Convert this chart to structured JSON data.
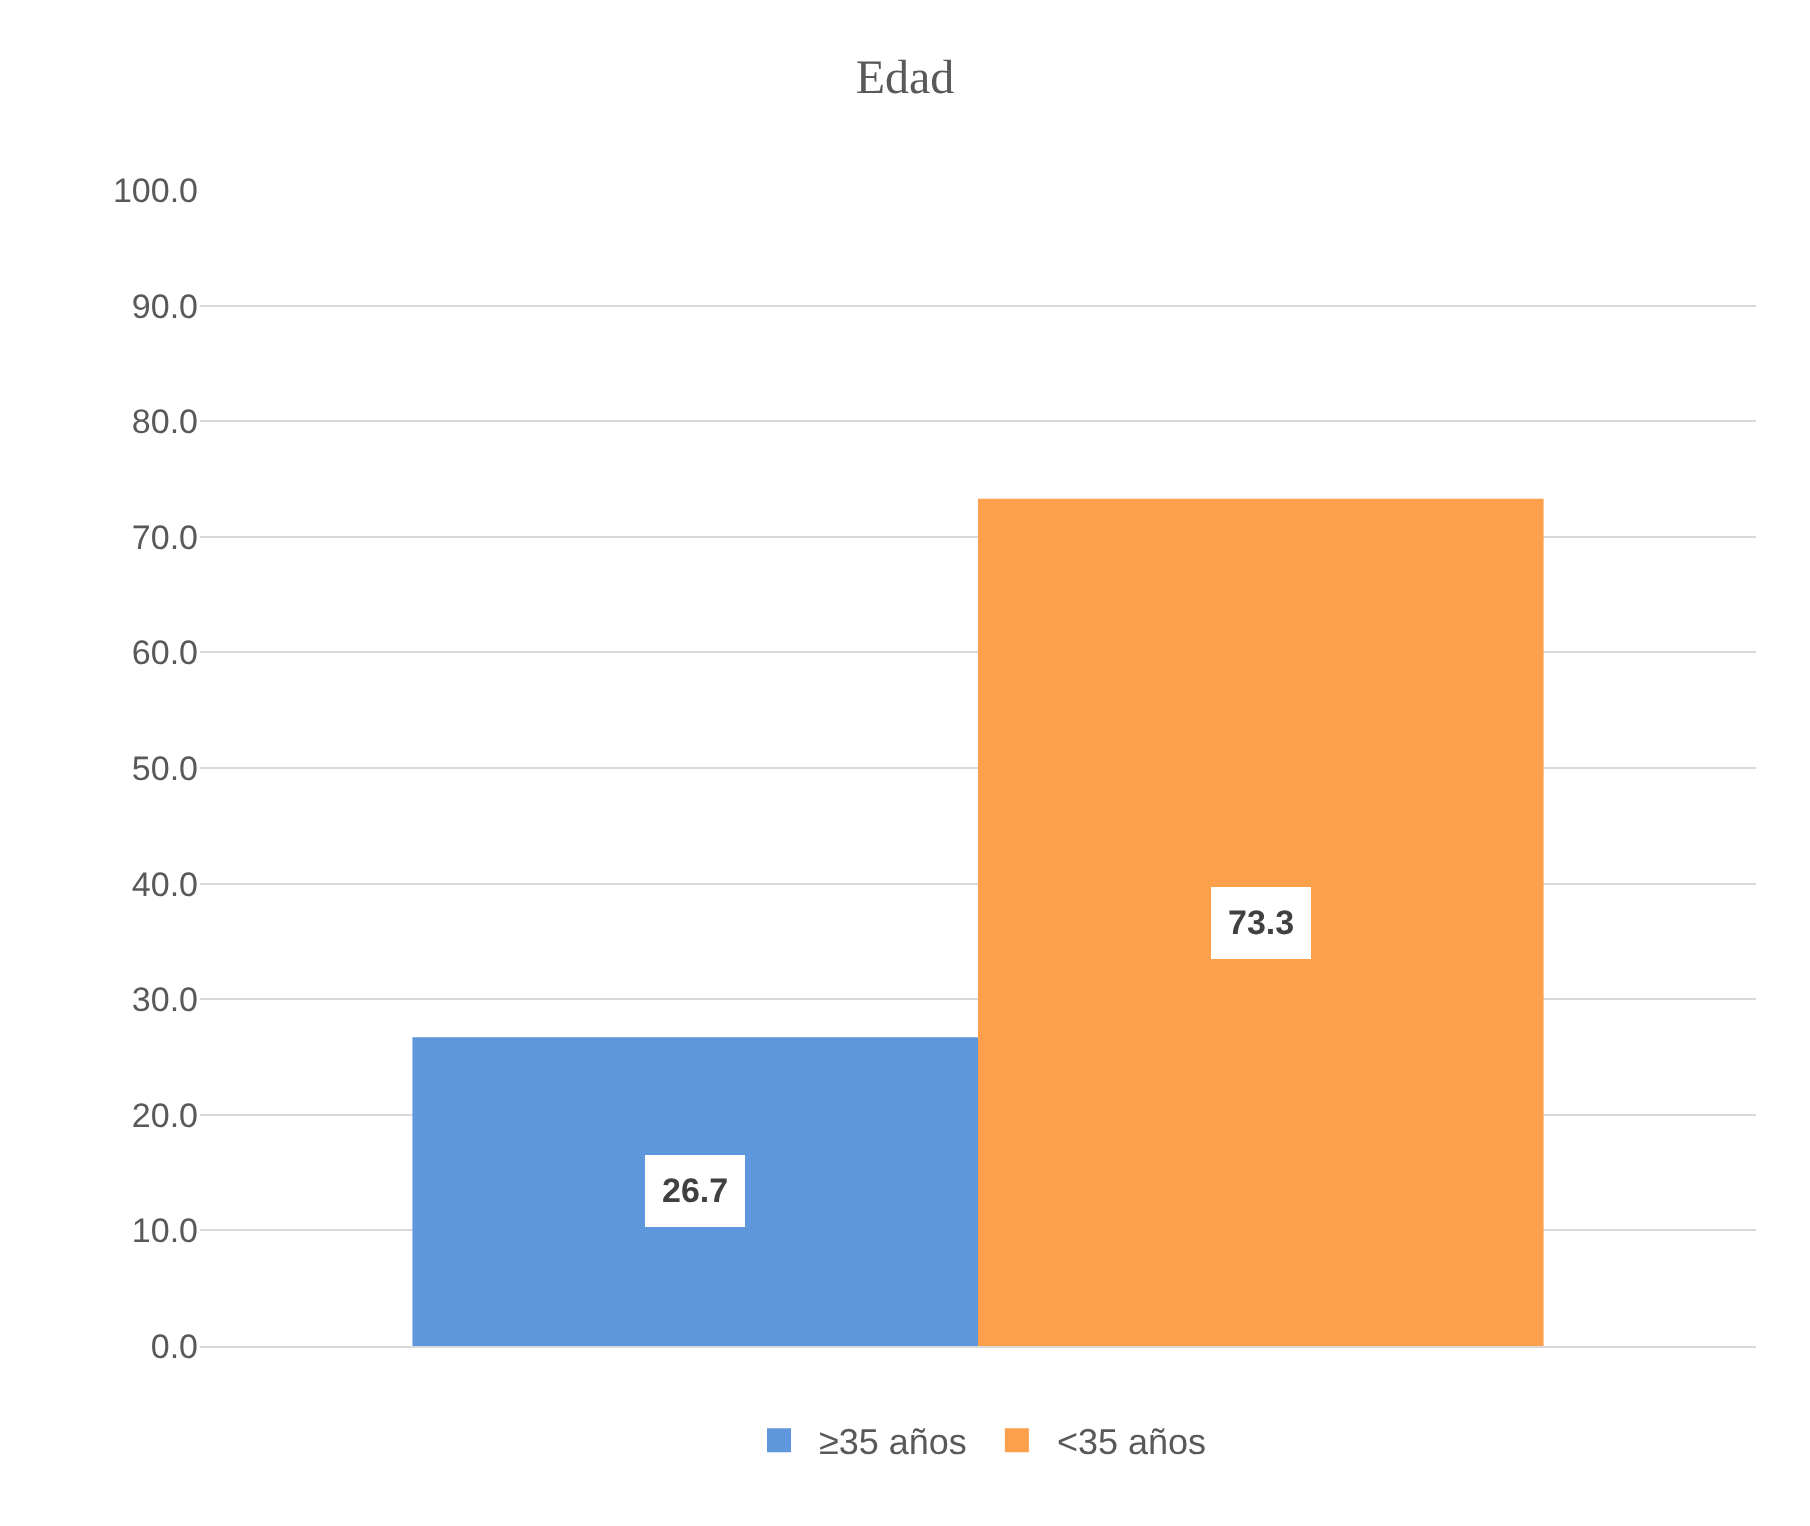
{
  "chart_data": {
    "type": "bar",
    "title": "Edad",
    "categories": [
      null
    ],
    "series": [
      {
        "name": "≥35 años",
        "color": "#5f97dd",
        "values": [
          26.7
        ]
      },
      {
        "name": "<35 años",
        "color": "#fda04c",
        "values": [
          73.3
        ]
      }
    ],
    "ylim": [
      0,
      100
    ],
    "yticks": [
      {
        "value": 0,
        "label": "0.0"
      },
      {
        "value": 10,
        "label": "10.0"
      },
      {
        "value": 20,
        "label": "20.0"
      },
      {
        "value": 30,
        "label": "30.0"
      },
      {
        "value": 40,
        "label": "40.0"
      },
      {
        "value": 50,
        "label": "50.0"
      },
      {
        "value": 60,
        "label": "60.0"
      },
      {
        "value": 70,
        "label": "70.0"
      },
      {
        "value": 80,
        "label": "80.0"
      },
      {
        "value": 90,
        "label": "90.0"
      },
      {
        "value": 100,
        "label": "100.0"
      }
    ],
    "grid": "y",
    "legend": "bottom",
    "data_labels": true
  }
}
